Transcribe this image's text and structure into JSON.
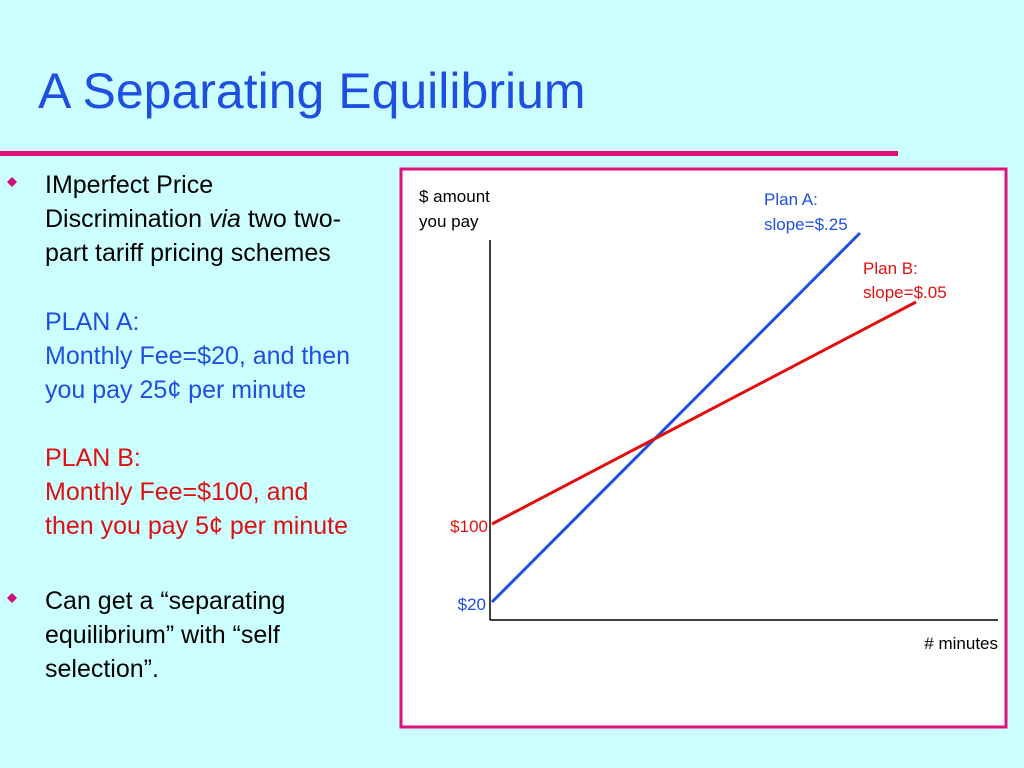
{
  "title": "A Separating Equilibrium",
  "bullets": [
    {
      "line1": "IMperfect Price",
      "line2_before": "Discrimination ",
      "line2_italic": "via",
      "line2_after": " two two-",
      "line3": "part tariff pricing schemes"
    },
    {
      "lines": [
        "Can get a “separating",
        "equilibrium” with “self",
        "selection”."
      ]
    }
  ],
  "plan_a": {
    "heading": "PLAN A:",
    "lines": [
      "Monthly Fee=$20, and then",
      "you pay 25¢ per minute"
    ]
  },
  "plan_b": {
    "heading": "PLAN B:",
    "lines": [
      "Monthly Fee=$100, and",
      "then you pay 5¢ per minute"
    ]
  },
  "diagram": {
    "y_label": [
      "$ amount",
      "you pay"
    ],
    "x_label": "# minutes",
    "plan_a_label": [
      "Plan A:",
      "slope=$.25"
    ],
    "plan_b_label": [
      "Plan B:",
      "slope=$.05"
    ],
    "intercept_b": "$100",
    "intercept_a": "$20"
  }
}
